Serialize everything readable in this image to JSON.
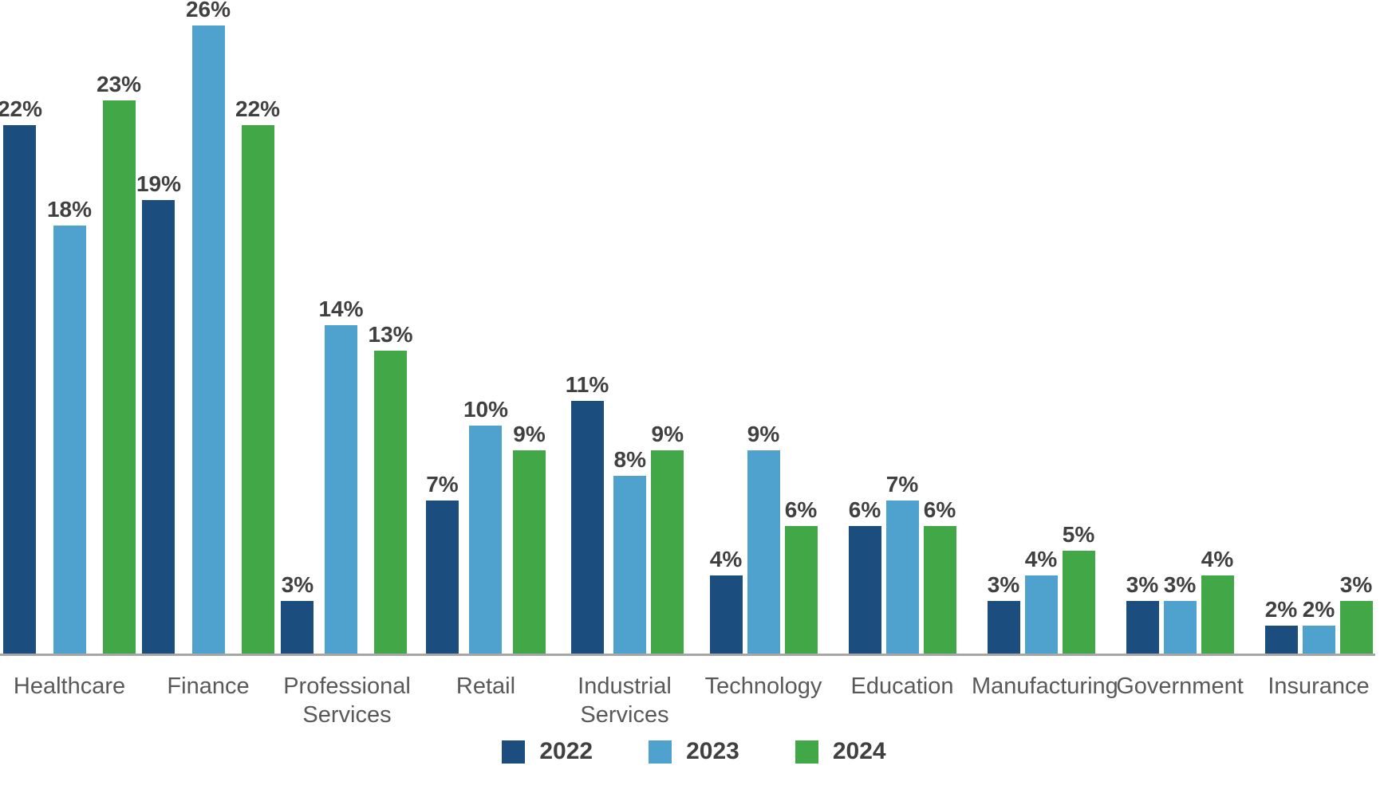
{
  "chart_data": {
    "type": "bar",
    "variant": "grouped-vertical",
    "title": "",
    "xlabel": "",
    "ylabel": "",
    "value_suffix": "%",
    "ylim": [
      0,
      27
    ],
    "grid": false,
    "legend_position": "bottom",
    "categories": [
      "Healthcare",
      "Finance",
      "Professional Services",
      "Retail",
      "Industrial Services",
      "Technology",
      "Education",
      "Manufacturing",
      "Government",
      "Insurance"
    ],
    "category_lines": [
      [
        "Healthcare"
      ],
      [
        "Finance"
      ],
      [
        "Professional",
        "Services"
      ],
      [
        "Retail"
      ],
      [
        "Industrial",
        "Services"
      ],
      [
        "Technology"
      ],
      [
        "Education"
      ],
      [
        "Manufacturing"
      ],
      [
        "Government"
      ],
      [
        "Insurance"
      ]
    ],
    "series": [
      {
        "name": "2022",
        "color": "#1B4E7F",
        "values": [
          22,
          19,
          3,
          7,
          11,
          4,
          6,
          3,
          3,
          2
        ]
      },
      {
        "name": "2023",
        "color": "#4FA2CE",
        "values": [
          18,
          26,
          14,
          10,
          8,
          9,
          7,
          4,
          3,
          2
        ]
      },
      {
        "name": "2024",
        "color": "#41A747",
        "values": [
          23,
          22,
          13,
          9,
          9,
          6,
          6,
          5,
          4,
          3
        ]
      }
    ],
    "data_labels": "above-bars"
  },
  "colors": {
    "axis_line": "#a6a6a6",
    "value_label": "#404040",
    "category_label": "#595959",
    "legend_text": "#404040",
    "background": "#ffffff"
  },
  "legend": {
    "items": [
      {
        "label": "2022",
        "color": "#1B4E7F"
      },
      {
        "label": "2023",
        "color": "#4FA2CE"
      },
      {
        "label": "2024",
        "color": "#41A747"
      }
    ]
  }
}
